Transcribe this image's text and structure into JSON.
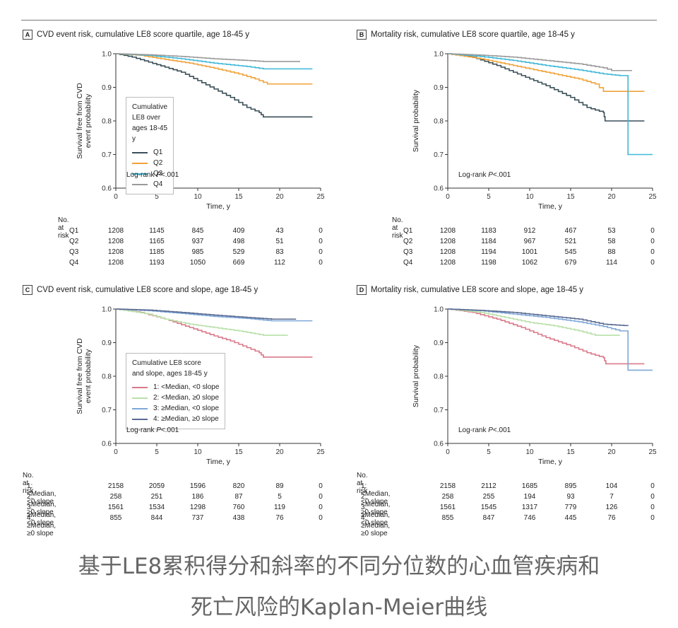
{
  "colors": {
    "quartile": [
      "#3a4f58",
      "#f0a23a",
      "#3fb8d8",
      "#9a9a9a"
    ],
    "slope": [
      "#d97a8a",
      "#b8e0a8",
      "#7fa8d8",
      "#5a6a90"
    ]
  },
  "caption": {
    "line1": "基于LE8累积得分和斜率的不同分位数的心血管疾病和",
    "line2": "死亡风险的Kaplan-Meier曲线"
  },
  "chart_data": [
    {
      "type": "line",
      "letter": "A",
      "title": "CVD event risk, cumulative LE8 score quartile, age 18-45 y",
      "xlabel": "Time, y",
      "ylabel": "Survival free from CVD event probability",
      "ylabel_lines": [
        "Survival free from CVD",
        "event probability"
      ],
      "xlim": [
        0,
        25
      ],
      "ylim": [
        0.6,
        1.0
      ],
      "xticks": [
        0,
        5,
        10,
        15,
        20,
        25
      ],
      "yticks": [
        0.6,
        0.7,
        0.8,
        0.9,
        1.0
      ],
      "ytick_labels": [
        "0.6",
        "0.7",
        "0.8",
        "0.9",
        "1.0"
      ],
      "legend_title": "Cumulative LE8 over ages 18-45 y",
      "legend_title_lines": [
        "Cumulative LE8 over",
        "ages 18-45 y"
      ],
      "logrank": "Log-rank P<.001",
      "series": [
        {
          "name": "Q1",
          "x": [
            0,
            2,
            4,
            6,
            8,
            10,
            12,
            14,
            16,
            17.5,
            18,
            24
          ],
          "y": [
            1.0,
            0.99,
            0.975,
            0.96,
            0.945,
            0.92,
            0.895,
            0.87,
            0.84,
            0.825,
            0.812,
            0.812
          ]
        },
        {
          "name": "Q2",
          "x": [
            0,
            3,
            6,
            9,
            12,
            15,
            17,
            18.5,
            24
          ],
          "y": [
            1.0,
            0.995,
            0.983,
            0.972,
            0.957,
            0.94,
            0.925,
            0.91,
            0.91
          ]
        },
        {
          "name": "Q3",
          "x": [
            0,
            4,
            8,
            12,
            16,
            18,
            24
          ],
          "y": [
            1.0,
            0.995,
            0.985,
            0.972,
            0.962,
            0.955,
            0.955
          ]
        },
        {
          "name": "Q4",
          "x": [
            0,
            4,
            8,
            12,
            16,
            18,
            22.5
          ],
          "y": [
            1.0,
            0.997,
            0.992,
            0.985,
            0.98,
            0.977,
            0.977
          ]
        }
      ],
      "risk_table": {
        "header": "No. at risk",
        "x": [
          0,
          5,
          10,
          15,
          20,
          25
        ],
        "rows": [
          {
            "label": "Q1",
            "values": [
              "1208",
              "1145",
              "845",
              "409",
              "43",
              "0"
            ]
          },
          {
            "label": "Q2",
            "values": [
              "1208",
              "1165",
              "937",
              "498",
              "51",
              "0"
            ]
          },
          {
            "label": "Q3",
            "values": [
              "1208",
              "1185",
              "985",
              "529",
              "83",
              "0"
            ]
          },
          {
            "label": "Q4",
            "values": [
              "1208",
              "1193",
              "1050",
              "669",
              "112",
              "0"
            ]
          }
        ]
      }
    },
    {
      "type": "line",
      "letter": "B",
      "title": "Mortality risk, cumulative LE8 score quartile, age 18-45 y",
      "xlabel": "Time, y",
      "ylabel": "Survival probability",
      "ylabel_lines": [
        "Survival probability"
      ],
      "xlim": [
        0,
        25
      ],
      "ylim": [
        0.6,
        1.0
      ],
      "xticks": [
        0,
        5,
        10,
        15,
        20,
        25
      ],
      "yticks": [
        0.6,
        0.7,
        0.8,
        0.9,
        1.0
      ],
      "ytick_labels": [
        "0.6 -",
        "0.7 -",
        "0.8 -",
        "0.9 -",
        "1.0 -"
      ],
      "logrank": "Log-rank P<.001",
      "series": [
        {
          "name": "Q1",
          "x": [
            0,
            3,
            6,
            9,
            12,
            15,
            17,
            19,
            19.2,
            24
          ],
          "y": [
            1.0,
            0.99,
            0.965,
            0.935,
            0.905,
            0.87,
            0.84,
            0.825,
            0.8,
            0.8
          ]
        },
        {
          "name": "Q2",
          "x": [
            0,
            4,
            8,
            12,
            16,
            18,
            19,
            24
          ],
          "y": [
            1.0,
            0.985,
            0.965,
            0.945,
            0.925,
            0.91,
            0.888,
            0.888
          ]
        },
        {
          "name": "Q3",
          "x": [
            0,
            4,
            8,
            12,
            16,
            19,
            21,
            22,
            22.1,
            25
          ],
          "y": [
            1.0,
            0.992,
            0.98,
            0.965,
            0.952,
            0.94,
            0.935,
            0.935,
            0.7,
            0.7
          ]
        },
        {
          "name": "Q4",
          "x": [
            0,
            4,
            8,
            12,
            16,
            19,
            20,
            22.5
          ],
          "y": [
            1.0,
            0.996,
            0.99,
            0.98,
            0.97,
            0.958,
            0.95,
            0.95
          ]
        }
      ],
      "risk_table": {
        "header": "No. at risk",
        "x": [
          0,
          5,
          10,
          15,
          20,
          25
        ],
        "rows": [
          {
            "label": "Q1",
            "values": [
              "1208",
              "1183",
              "912",
              "467",
              "53",
              "0"
            ]
          },
          {
            "label": "Q2",
            "values": [
              "1208",
              "1184",
              "967",
              "521",
              "58",
              "0"
            ]
          },
          {
            "label": "Q3",
            "values": [
              "1208",
              "1194",
              "1001",
              "545",
              "88",
              "0"
            ]
          },
          {
            "label": "Q4",
            "values": [
              "1208",
              "1198",
              "1062",
              "679",
              "114",
              "0"
            ]
          }
        ]
      }
    },
    {
      "type": "line",
      "letter": "C",
      "title": "CVD event risk, cumulative LE8 score and slope, age 18-45 y",
      "xlabel": "Time, y",
      "ylabel": "Survival free from CVD event probability",
      "ylabel_lines": [
        "Survival free from CVD",
        "event probability"
      ],
      "xlim": [
        0,
        25
      ],
      "ylim": [
        0.6,
        1.0
      ],
      "xticks": [
        0,
        5,
        10,
        15,
        20,
        25
      ],
      "yticks": [
        0.6,
        0.7,
        0.8,
        0.9,
        1.0
      ],
      "ytick_labels": [
        "0.6",
        "0.7",
        "0.8",
        "0.9",
        "1.0"
      ],
      "legend_title": "Cumulative LE8 score and slope, ages 18-45 y",
      "legend_title_lines": [
        "Cumulative LE8 score",
        "and slope, ages 18-45 y"
      ],
      "logrank": "Log-rank P<.001",
      "series": [
        {
          "name": "1: <Median, <0 slope",
          "x": [
            0,
            3,
            6,
            9,
            12,
            14,
            16,
            17.5,
            18,
            24
          ],
          "y": [
            1.0,
            0.99,
            0.97,
            0.945,
            0.92,
            0.905,
            0.885,
            0.87,
            0.857,
            0.857
          ]
        },
        {
          "name": "2: <Median, ≥0 slope",
          "x": [
            0,
            4,
            6,
            9,
            12,
            15,
            18,
            21
          ],
          "y": [
            1.0,
            0.985,
            0.97,
            0.955,
            0.945,
            0.935,
            0.922,
            0.922
          ]
        },
        {
          "name": "3: ≥Median, <0 slope",
          "x": [
            0,
            4,
            8,
            12,
            16,
            19,
            24
          ],
          "y": [
            1.0,
            0.995,
            0.987,
            0.978,
            0.972,
            0.965,
            0.965
          ]
        },
        {
          "name": "4: ≥Median, ≥0 slope",
          "x": [
            0,
            4,
            8,
            12,
            16,
            19,
            22
          ],
          "y": [
            1.0,
            0.997,
            0.99,
            0.982,
            0.975,
            0.97,
            0.97
          ]
        }
      ],
      "risk_table": {
        "header": "No. at risk",
        "x": [
          0,
          5,
          10,
          15,
          20,
          25
        ],
        "rows": [
          {
            "label": "1: <Median, <0 slope",
            "values": [
              "2158",
              "2059",
              "1596",
              "820",
              "89",
              "0"
            ]
          },
          {
            "label": "2: <Median, ≥0 slope",
            "values": [
              "258",
              "251",
              "186",
              "87",
              "5",
              "0"
            ]
          },
          {
            "label": "3: ≥Median, <0 slope",
            "values": [
              "1561",
              "1534",
              "1298",
              "760",
              "119",
              "0"
            ]
          },
          {
            "label": "4: ≥Median, ≥0 slope",
            "values": [
              "855",
              "844",
              "737",
              "438",
              "76",
              "0"
            ]
          }
        ]
      }
    },
    {
      "type": "line",
      "letter": "D",
      "title": "Mortality risk, cumulative LE8 score and slope, age 18-45 y",
      "xlabel": "Time, y",
      "ylabel": "Survival probability",
      "ylabel_lines": [
        "Survival probability"
      ],
      "xlim": [
        0,
        25
      ],
      "ylim": [
        0.6,
        1.0
      ],
      "xticks": [
        0,
        5,
        10,
        15,
        20,
        25
      ],
      "yticks": [
        0.6,
        0.7,
        0.8,
        0.9,
        1.0
      ],
      "ytick_labels": [
        "0.6 -",
        "0.7 -",
        "0.8 -",
        "0.9 -",
        "1.0 -"
      ],
      "logrank": "Log-rank P<.001",
      "series": [
        {
          "name": "1: <Median, <0 slope",
          "x": [
            0,
            3,
            6,
            9,
            12,
            15,
            17,
            19,
            19.3,
            24
          ],
          "y": [
            1.0,
            0.99,
            0.97,
            0.945,
            0.915,
            0.89,
            0.87,
            0.855,
            0.837,
            0.837
          ]
        },
        {
          "name": "2: <Median, ≥0 slope",
          "x": [
            0,
            4,
            7,
            10,
            13,
            16,
            18,
            21
          ],
          "y": [
            1.0,
            0.99,
            0.975,
            0.96,
            0.95,
            0.935,
            0.922,
            0.922
          ]
        },
        {
          "name": "3: ≥Median, <0 slope",
          "x": [
            0,
            4,
            8,
            12,
            16,
            19,
            21,
            22,
            22.1,
            25
          ],
          "y": [
            1.0,
            0.995,
            0.985,
            0.975,
            0.962,
            0.948,
            0.935,
            0.935,
            0.818,
            0.818
          ]
        },
        {
          "name": "4: ≥Median, ≥0 slope",
          "x": [
            0,
            4,
            8,
            12,
            16,
            19,
            22
          ],
          "y": [
            1.0,
            0.996,
            0.99,
            0.98,
            0.97,
            0.955,
            0.95
          ]
        }
      ],
      "risk_table": {
        "header": "No. at risk",
        "x": [
          0,
          5,
          10,
          15,
          20,
          25
        ],
        "rows": [
          {
            "label": "1: <Median, <0 slope",
            "values": [
              "2158",
              "2112",
              "1685",
              "895",
              "104",
              "0"
            ]
          },
          {
            "label": "2: <Median, ≥0 slope",
            "values": [
              "258",
              "255",
              "194",
              "93",
              "7",
              "0"
            ]
          },
          {
            "label": "3: ≥Median, <0 slope",
            "values": [
              "1561",
              "1545",
              "1317",
              "779",
              "126",
              "0"
            ]
          },
          {
            "label": "4: ≥Median, ≥0 slope",
            "values": [
              "855",
              "847",
              "746",
              "445",
              "76",
              "0"
            ]
          }
        ]
      }
    }
  ]
}
